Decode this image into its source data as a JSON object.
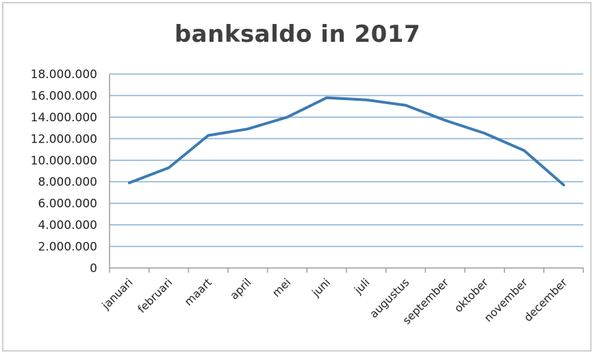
{
  "chart_data": {
    "type": "line",
    "title": "banksaldo in 2017",
    "xlabel": "",
    "ylabel": "",
    "categories": [
      "januari",
      "februari",
      "maart",
      "april",
      "mei",
      "juni",
      "juli",
      "augustus",
      "september",
      "oktober",
      "november",
      "december"
    ],
    "series": [
      {
        "values": [
          7900000,
          9300000,
          12300000,
          12900000,
          14000000,
          15800000,
          15600000,
          15100000,
          13700000,
          12500000,
          10900000,
          7700000
        ],
        "color": "#3c7bb3"
      }
    ],
    "ylim": [
      0,
      18000000
    ],
    "yticks": [
      {
        "value": 0,
        "label": "0"
      },
      {
        "value": 2000000,
        "label": "2.000.000"
      },
      {
        "value": 4000000,
        "label": "4.000.000"
      },
      {
        "value": 6000000,
        "label": "6.000.000"
      },
      {
        "value": 8000000,
        "label": "8.000.000"
      },
      {
        "value": 10000000,
        "label": "10.000.000"
      },
      {
        "value": 12000000,
        "label": "12.000.000"
      },
      {
        "value": 14000000,
        "label": "14.000.000"
      },
      {
        "value": 16000000,
        "label": "16.000.000"
      },
      {
        "value": 18000000,
        "label": "18.000.000"
      }
    ],
    "grid": true,
    "legend": "none",
    "gridline_color": "#8db3d9",
    "axis_color": "#9a9a9a"
  }
}
